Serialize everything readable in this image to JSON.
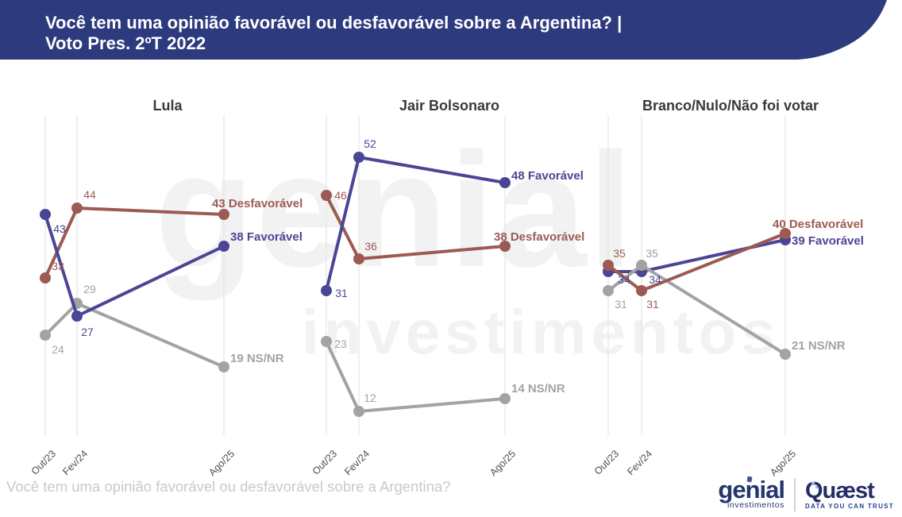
{
  "header": {
    "title_line1": "Você tem uma opinião favorável ou desfavorável sobre a Argentina? |",
    "title_line2": "Voto Pres. 2ºT 2022",
    "banner_color": "#2d3a7e"
  },
  "watermark": {
    "line1": "genial",
    "line2": "investimentos"
  },
  "colors": {
    "favoravel": "#4a4695",
    "desfavoravel": "#9c5a53",
    "nsnr": "#a3a3a3",
    "gridline": "#e4e4e4",
    "tick_label": "#4d4d4d"
  },
  "chart_data": [
    {
      "type": "line",
      "title": "Lula",
      "x_categories": [
        "Out/23",
        "Fev/24",
        "Ago/25"
      ],
      "ylim": [
        9,
        59
      ],
      "grid": "vertical-only",
      "legend_position": "end-of-line-labels",
      "series": [
        {
          "name": "Favorável",
          "color": "#4a4695",
          "values": [
            43,
            27,
            38
          ],
          "end_label": "38 Favorável"
        },
        {
          "name": "Desfavorável",
          "color": "#9c5a53",
          "values": [
            33,
            44,
            43
          ],
          "end_label": "43 Desfavorável"
        },
        {
          "name": "NS/NR",
          "color": "#a3a3a3",
          "values": [
            24,
            29,
            19
          ],
          "end_label": "19 NS/NR"
        }
      ]
    },
    {
      "type": "line",
      "title": "Jair Bolsonaro",
      "x_categories": [
        "Out/23",
        "Fev/24",
        "Ago/25"
      ],
      "ylim": [
        9,
        59
      ],
      "grid": "vertical-only",
      "legend_position": "end-of-line-labels",
      "series": [
        {
          "name": "Favorável",
          "color": "#4a4695",
          "values": [
            31,
            52,
            48
          ],
          "end_label": "48 Favorável"
        },
        {
          "name": "Desfavorável",
          "color": "#9c5a53",
          "values": [
            46,
            36,
            38
          ],
          "end_label": "38 Desfavorável"
        },
        {
          "name": "NS/NR",
          "color": "#a3a3a3",
          "values": [
            23,
            12,
            14
          ],
          "end_label": "14 NS/NR"
        }
      ]
    },
    {
      "type": "line",
      "title": "Branco/Nulo/Não foi votar",
      "x_categories": [
        "Out/23",
        "Fev/24",
        "Ago/25"
      ],
      "ylim": [
        9,
        59
      ],
      "grid": "vertical-only",
      "legend_position": "end-of-line-labels",
      "series": [
        {
          "name": "Favorável",
          "color": "#4a4695",
          "values": [
            34,
            34,
            39
          ],
          "end_label": "39 Favorável"
        },
        {
          "name": "Desfavorável",
          "color": "#9c5a53",
          "values": [
            35,
            31,
            40
          ],
          "end_label": "40 Desfavorável"
        },
        {
          "name": "NS/NR",
          "color": "#a3a3a3",
          "values": [
            31,
            35,
            21
          ],
          "end_label": "21 NS/NR"
        }
      ]
    }
  ],
  "footer": {
    "question": "Você tem uma opinião favorável ou desfavorável sobre a Argentina?",
    "logos": {
      "genial_name": "genial",
      "genial_sub": "investimentos",
      "quaest_name": "Quæst",
      "quaest_tagline": "DATA YOU CAN TRUST"
    }
  }
}
